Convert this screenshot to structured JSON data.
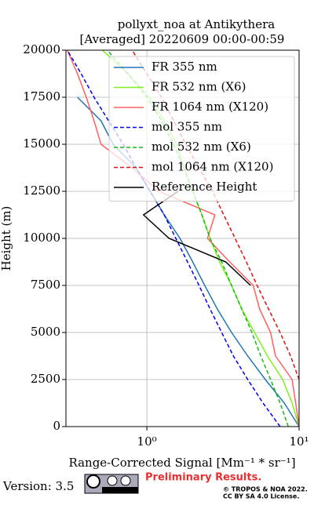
{
  "chart_data": {
    "type": "line",
    "title": "pollyxt_noa at Antikythera",
    "subtitle": "[Averaged] 20220609 00:00-00:59",
    "x_label": "Range-Corrected Signal [Mm⁻¹ * sr⁻¹]",
    "y_label": "Height (m)",
    "y": [
      0,
      1250,
      2500,
      3750,
      5000,
      6250,
      7500,
      8750,
      10000,
      11250,
      12500,
      13750,
      15000,
      16250,
      17500,
      18750,
      20000
    ],
    "series": [
      {
        "name": "FR 355 nm",
        "color": "#1f77b4",
        "dash": false,
        "values": [
          10,
          8,
          6,
          4.6,
          3.6,
          2.9,
          2.4,
          2.0,
          1.65,
          1.3,
          1.05,
          0.85,
          0.6,
          0.5,
          0.35,
          null,
          null
        ]
      },
      {
        "name": "FR 532 nm (X6)",
        "color": "#80f020",
        "dash": false,
        "values": [
          10,
          9,
          7.8,
          6.2,
          5.1,
          4.2,
          3.6,
          3.0,
          2.6,
          2.3,
          2.0,
          1.75,
          1.57,
          1.3,
          1.04,
          0.75,
          0.51
        ]
      },
      {
        "name": "FR 1064 nm (X120)",
        "color": "#ff6060",
        "dash": false,
        "values": [
          10,
          9.5,
          9,
          7,
          6.5,
          5.5,
          5,
          3.5,
          2.5,
          2.8,
          1.2,
          0.8,
          0.5,
          0.45,
          0.4,
          0.35,
          0.3
        ]
      },
      {
        "name": "mol 355 nm",
        "color": "#0000ee",
        "dash": true,
        "values": [
          7.5,
          5.8,
          4.6,
          3.7,
          3.1,
          2.6,
          2.2,
          1.85,
          1.55,
          1.3,
          1.05,
          0.85,
          0.7,
          0.56,
          0.45,
          0.37,
          0.3
        ]
      },
      {
        "name": "mol 532 nm (X6)",
        "color": "#11bb11",
        "dash": true,
        "values": [
          8.5,
          7.5,
          6.5,
          5.6,
          4.9,
          4.2,
          3.6,
          3.1,
          2.6,
          2.3,
          2.0,
          1.75,
          1.5,
          1.25,
          1.0,
          0.75,
          0.55
        ]
      },
      {
        "name": "mol 1064 nm (X120)",
        "color": "#dd1111",
        "dash": true,
        "values": [
          null,
          null,
          10,
          8.8,
          7.5,
          6.3,
          5.3,
          4.5,
          3.8,
          3.2,
          2.7,
          2.2,
          1.8,
          1.5,
          1.25,
          1.0,
          0.8
        ]
      },
      {
        "name": "Reference Height",
        "color": "#000000",
        "dash": false,
        "values": [
          null,
          null,
          null,
          null,
          null,
          null,
          4.8,
          3.3,
          1.4,
          0.95,
          1.6,
          null,
          null,
          null,
          null,
          null,
          null
        ]
      }
    ],
    "xlim": [
      0.294,
      10
    ],
    "log_x": true,
    "xticks": [
      {
        "value": 1,
        "label": "10⁰"
      },
      {
        "value": 10,
        "label": "10¹"
      }
    ],
    "ylim": [
      0,
      20000
    ],
    "yticks": [
      0,
      2500,
      5000,
      7500,
      10000,
      12500,
      15000,
      17500,
      20000
    ],
    "grid": true,
    "legend": "upper right"
  },
  "footer": {
    "version": "Version: 3.5",
    "notice": "Preliminary Results.",
    "copyright": "© TROPOS & NOA 2022.",
    "license": "CC BY SA 4.0 License."
  }
}
